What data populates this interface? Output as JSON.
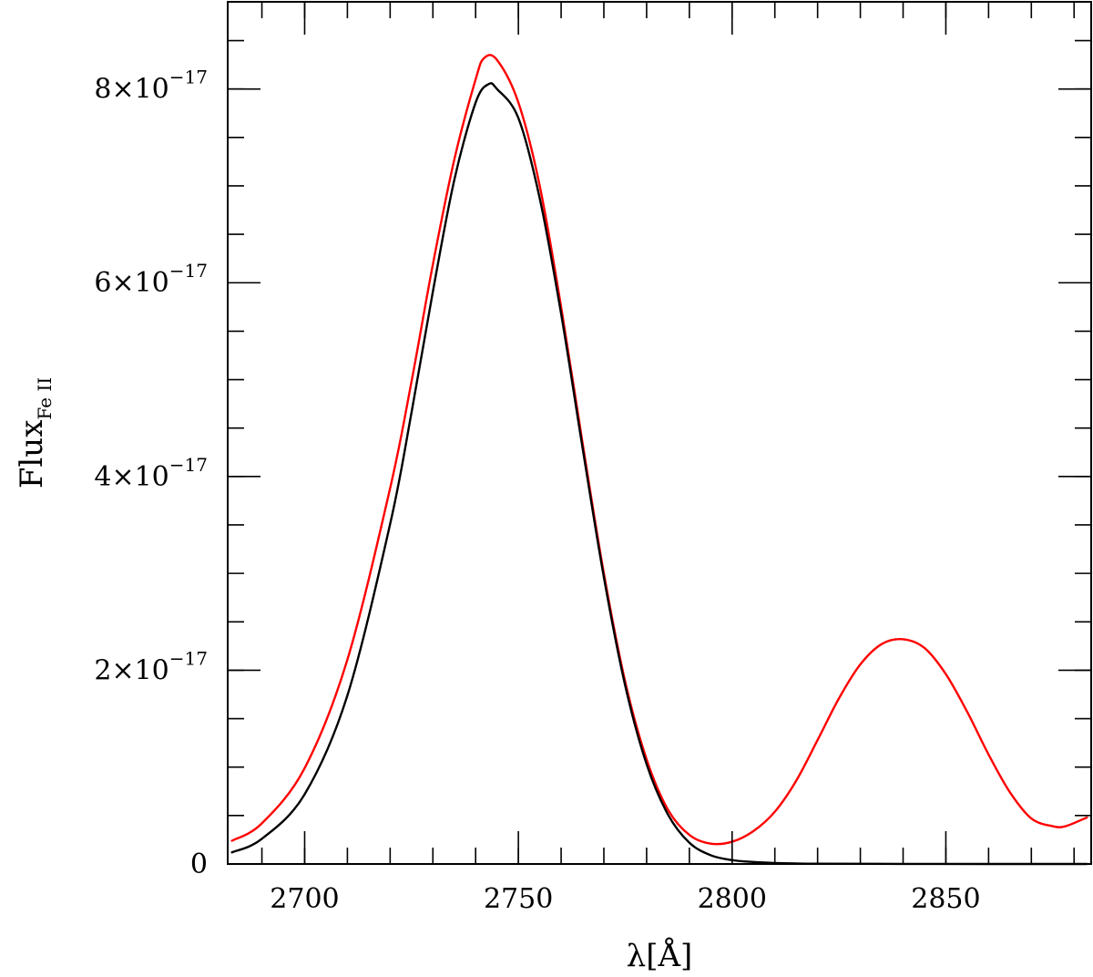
{
  "chart_data": {
    "type": "line",
    "xlabel": "λ[Å]",
    "ylabel": {
      "main": "Flux",
      "subscript": "Fe II"
    },
    "xlim": [
      2682,
      2884
    ],
    "ylim": [
      0,
      8.9e-17
    ],
    "x_ticks": [
      {
        "value": 2700,
        "label": "2700"
      },
      {
        "value": 2750,
        "label": "2750"
      },
      {
        "value": 2800,
        "label": "2800"
      },
      {
        "value": 2850,
        "label": "2850"
      }
    ],
    "y_ticks": [
      {
        "value": 0,
        "mantissa": "0",
        "exponent": ""
      },
      {
        "value": 2e-17,
        "mantissa": "2×10",
        "exponent": "−17"
      },
      {
        "value": 4e-17,
        "mantissa": "4×10",
        "exponent": "−17"
      },
      {
        "value": 6e-17,
        "mantissa": "6×10",
        "exponent": "−17"
      },
      {
        "value": 8e-17,
        "mantissa": "8×10",
        "exponent": "−17"
      }
    ],
    "x_minor_step": 10,
    "y_minor_step": 5e-18,
    "grid": false,
    "legend": "none",
    "series": [
      {
        "color": "#ff0000",
        "x": [
          2683,
          2690,
          2700,
          2710,
          2720,
          2725,
          2730,
          2735,
          2740,
          2742,
          2745,
          2750,
          2755,
          2760,
          2765,
          2770,
          2775,
          2780,
          2785,
          2790,
          2795,
          2800,
          2805,
          2810,
          2815,
          2820,
          2825,
          2830,
          2835,
          2840,
          2845,
          2850,
          2855,
          2860,
          2865,
          2870,
          2875,
          2878,
          2883
        ],
        "y": [
          2.4e-18,
          4.2e-18,
          9.9e-18,
          2.11e-17,
          3.88e-17,
          4.98e-17,
          6.19e-17,
          7.27e-17,
          8.1e-17,
          8.32e-17,
          8.3e-17,
          7.86e-17,
          7e-17,
          5.75e-17,
          4.35e-17,
          3e-17,
          1.88e-17,
          1.08e-17,
          5.6e-18,
          3e-18,
          2.1e-18,
          2.3e-18,
          3.4e-18,
          5.4e-18,
          8.6e-18,
          1.28e-17,
          1.71e-17,
          2.06e-17,
          2.27e-17,
          2.32e-17,
          2.23e-17,
          1.96e-17,
          1.57e-17,
          1.13e-17,
          7.4e-18,
          4.7e-18,
          3.9e-18,
          3.9e-18,
          4.8e-18
        ]
      },
      {
        "color": "#000000",
        "x": [
          2683,
          2690,
          2700,
          2710,
          2720,
          2725,
          2730,
          2735,
          2740,
          2743,
          2745,
          2750,
          2755,
          2760,
          2765,
          2770,
          2775,
          2780,
          2785,
          2790,
          2795,
          2800,
          2805,
          2810,
          2815,
          2820,
          2840,
          2860,
          2883
        ],
        "y": [
          1.2e-18,
          2.6e-18,
          7.2e-18,
          1.74e-17,
          3.51e-17,
          4.66e-17,
          5.91e-17,
          7.06e-17,
          7.86e-17,
          8.05e-17,
          8e-17,
          7.7e-17,
          6.87e-17,
          5.68e-17,
          4.3e-17,
          2.96e-17,
          1.84e-17,
          1.03e-17,
          5.1e-18,
          2.2e-18,
          9e-19,
          4e-19,
          2e-19,
          1e-19,
          5e-20,
          3e-20,
          1e-20,
          0,
          0
        ]
      }
    ]
  }
}
